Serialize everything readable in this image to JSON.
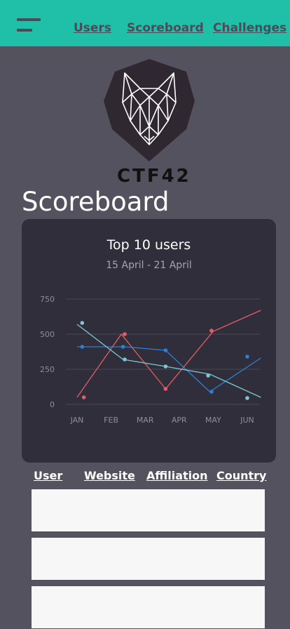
{
  "nav": {
    "links": [
      "Users",
      "Scoreboard",
      "Challenges"
    ]
  },
  "brand": {
    "name": "CTF42"
  },
  "page": {
    "title": "Scoreboard"
  },
  "card": {
    "title": "Top 10 users",
    "subtitle": "15 April - 21 April"
  },
  "chart_data": {
    "type": "line",
    "title": "Top 10 users",
    "subtitle": "15 April - 21 April",
    "categories": [
      "JAN",
      "FEB",
      "MAR",
      "APR",
      "MAY",
      "JUN"
    ],
    "yticks": [
      0,
      250,
      500,
      750
    ],
    "ylim": [
      0,
      750
    ],
    "grid": true,
    "series": [
      {
        "color": "#e35d66",
        "line": [
          [
            0,
            50
          ],
          [
            1.3,
            500
          ],
          [
            2.6,
            110
          ],
          [
            4.0,
            520
          ],
          [
            5.4,
            670
          ]
        ],
        "points": [
          [
            0.2,
            50
          ],
          [
            1.4,
            500
          ],
          [
            2.6,
            110
          ],
          [
            3.95,
            525
          ]
        ]
      },
      {
        "color": "#2e7fd6",
        "line": [
          [
            0,
            410
          ],
          [
            1.4,
            410
          ],
          [
            2.6,
            385
          ],
          [
            3.9,
            90
          ],
          [
            5.4,
            330
          ]
        ],
        "points": [
          [
            0.15,
            410
          ],
          [
            1.35,
            410
          ],
          [
            2.6,
            385
          ],
          [
            3.95,
            90
          ],
          [
            5.0,
            340
          ]
        ]
      },
      {
        "color": "#79c9d4",
        "line": [
          [
            0,
            570
          ],
          [
            1.35,
            320
          ],
          [
            2.6,
            270
          ],
          [
            3.9,
            215
          ],
          [
            5.4,
            50
          ]
        ],
        "points": [
          [
            0.15,
            580
          ],
          [
            1.4,
            320
          ],
          [
            2.6,
            270
          ],
          [
            3.85,
            205
          ],
          [
            5.0,
            45
          ]
        ]
      }
    ]
  },
  "table": {
    "headers": [
      "User",
      "Website",
      "Affiliation",
      "Country"
    ],
    "row_count": 3
  },
  "colors": {
    "topbar": "#1fbfa8",
    "page_bg": "#55525f",
    "card_bg": "#302e3a",
    "row_bg": "#f7f7f7"
  },
  "icons": {
    "menu": "hamburger-menu-icon",
    "logo": "wolf-logo-icon"
  }
}
